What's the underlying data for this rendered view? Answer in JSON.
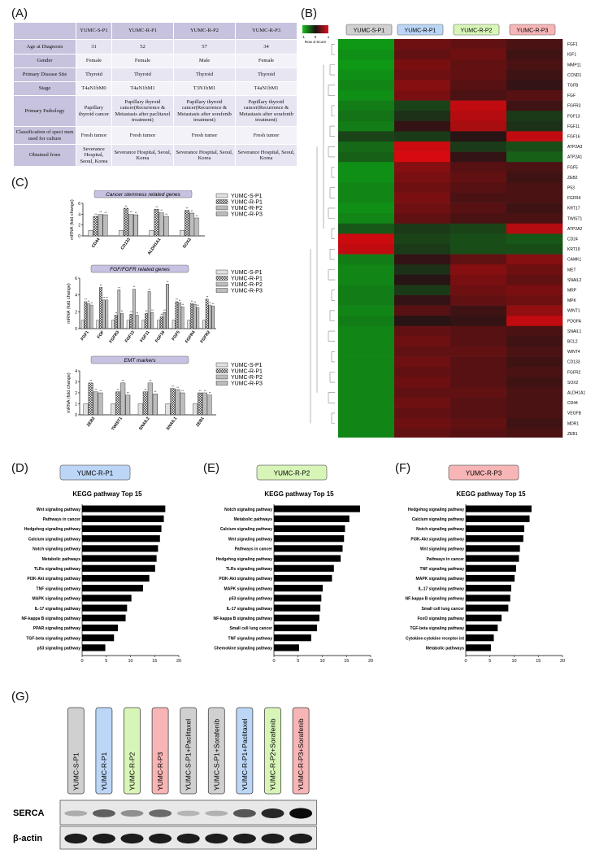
{
  "labels": {
    "A": "(A)",
    "B": "(B)",
    "C": "(C)",
    "D": "(D)",
    "E": "(E)",
    "F": "(F)",
    "G": "(G)"
  },
  "table": {
    "columns": [
      "YUMC-S-P1",
      "YUMC-R-P1",
      "YUMC-R-P2",
      "YUMC-R-P3"
    ],
    "rows": [
      {
        "label": "Age at Diagnosis",
        "values": [
          "31",
          "52",
          "57",
          "34"
        ]
      },
      {
        "label": "Gender",
        "values": [
          "Female",
          "Female",
          "Male",
          "Female"
        ]
      },
      {
        "label": "Primary Disease Site",
        "values": [
          "Thyroid",
          "Thyroid",
          "Thyroid",
          "Thyroid"
        ]
      },
      {
        "label": "Stage",
        "values": [
          "T4aN1bM0",
          "T4aN1bM1",
          "T3N1bM1",
          "T4aN1bM1"
        ]
      },
      {
        "label": "Primary Pathology",
        "values": [
          "Papillary thyroid cancer",
          "Papillary thyroid cancer(Recurrence & Metastasis after paclitaxel treatment)",
          "Papillary thyroid cancer(Recurrence & Metastasis after sorafenib treatment)",
          "Papillary thyroid cancer(Recurrence & Metastasis after sorafenib treatment)"
        ]
      },
      {
        "label": "Classification of speci men used for culture",
        "values": [
          "Fresh tumor",
          "Fresh tumor",
          "Fresh tumor",
          "Fresh tumor"
        ]
      },
      {
        "label": "Obtained from",
        "values": [
          "Severance Hospital, Seoul, Korea",
          "Severance Hospital, Seoul, Korea",
          "Severance Hospital, Seoul, Korea",
          "Severance Hospital, Seoul, Korea"
        ]
      }
    ]
  },
  "heatmap": {
    "legend_ticks": [
      "-1",
      "0",
      "1"
    ],
    "legend_label": "Row Z-Score",
    "columns": [
      "YUMC-S-P1",
      "YUMC-R-P1",
      "YUMC-R-P2",
      "YUMC-R-P3"
    ],
    "column_colors": [
      "#d0d0d0",
      "#bcd6f7",
      "#d8f5b8",
      "#f7b5b5"
    ],
    "genes": [
      "FGF1",
      "IGF1",
      "MMP11",
      "CCND1",
      "TGFB",
      "FGF",
      "FGFR3",
      "FGF13",
      "FGF11",
      "FGF16",
      "ATP2A3",
      "ATP2A1",
      "FGF5",
      "ZEB2",
      "P53",
      "FGFR4",
      "KRT17",
      "TWIST1",
      "ATP2A2",
      "CD24",
      "KRT19",
      "CAMK1",
      "MET",
      "SNAIL2",
      "MRP",
      "MPK",
      "WINT1",
      "PDGFA",
      "SNAIL1",
      "BCL2",
      "WINT4",
      "CD133",
      "FGFR2",
      "SOX2",
      "ALDH1A1",
      "CD44",
      "VEGFB",
      "MDR1",
      "ZEB1"
    ],
    "z_scores": [
      [
        -1.2,
        0.6,
        0.5,
        0.3
      ],
      [
        -1.1,
        0.5,
        0.6,
        0.2
      ],
      [
        -1.2,
        0.7,
        0.5,
        0.3
      ],
      [
        -1.1,
        0.6,
        0.5,
        0.2
      ],
      [
        -1.0,
        0.8,
        0.4,
        0.1
      ],
      [
        -1.1,
        0.7,
        0.3,
        0.4
      ],
      [
        -0.9,
        -0.3,
        1.3,
        0.2
      ],
      [
        -0.8,
        -0.1,
        1.2,
        -0.2
      ],
      [
        -0.9,
        0.1,
        1.1,
        -0.1
      ],
      [
        -0.3,
        -0.2,
        0.0,
        1.3
      ],
      [
        -0.7,
        1.4,
        -0.2,
        -0.4
      ],
      [
        -0.6,
        1.5,
        0.1,
        -0.6
      ],
      [
        -1.1,
        0.8,
        0.4,
        0.3
      ],
      [
        -1.1,
        0.7,
        0.5,
        0.2
      ],
      [
        -1.0,
        0.6,
        0.4,
        0.3
      ],
      [
        -1.0,
        0.7,
        0.3,
        0.3
      ],
      [
        -1.1,
        0.6,
        0.4,
        0.2
      ],
      [
        -1.0,
        0.5,
        0.3,
        0.3
      ],
      [
        -0.5,
        -0.2,
        -0.3,
        1.2
      ],
      [
        1.4,
        -0.3,
        -0.4,
        -0.5
      ],
      [
        1.3,
        -0.2,
        -0.4,
        -0.4
      ],
      [
        -0.9,
        0.1,
        0.5,
        0.8
      ],
      [
        -1.0,
        -0.1,
        0.8,
        0.6
      ],
      [
        -1.0,
        0.0,
        0.7,
        0.5
      ],
      [
        -0.9,
        -0.2,
        0.6,
        0.7
      ],
      [
        -0.9,
        0.1,
        0.5,
        0.6
      ],
      [
        -1.0,
        0.4,
        0.2,
        0.9
      ],
      [
        -0.9,
        0.0,
        0.1,
        1.3
      ],
      [
        -1.0,
        0.5,
        0.4,
        0.3
      ],
      [
        -1.0,
        0.6,
        0.4,
        0.2
      ],
      [
        -1.0,
        0.5,
        0.5,
        0.3
      ],
      [
        -1.0,
        0.6,
        0.4,
        0.2
      ],
      [
        -1.0,
        0.5,
        0.4,
        0.3
      ],
      [
        -1.0,
        0.6,
        0.4,
        0.2
      ],
      [
        -1.0,
        0.5,
        0.5,
        0.3
      ],
      [
        -1.0,
        0.6,
        0.4,
        0.3
      ],
      [
        -1.0,
        0.5,
        0.4,
        0.3
      ],
      [
        -1.0,
        0.6,
        0.5,
        0.2
      ],
      [
        -1.0,
        0.5,
        0.4,
        0.3
      ]
    ]
  },
  "panelC": {
    "legend": [
      "YUMC-S-P1",
      "YUMC-R-P1",
      "YUMC-R-P2",
      "YUMC-R-P3"
    ],
    "charts": [
      {
        "title": "Cancer stemness related genes",
        "ylabel": "mRNA (fold change)",
        "ylim": [
          0,
          6
        ],
        "yticks": [
          0,
          2,
          4,
          6
        ],
        "categories": [
          "CD44",
          "CD133",
          "ALDH1A1",
          "SOX2"
        ],
        "values": [
          [
            1.0,
            3.6,
            4.0,
            3.9
          ],
          [
            1.0,
            5.1,
            4.0,
            3.9
          ],
          [
            1.0,
            4.9,
            4.3,
            3.6
          ],
          [
            1.0,
            4.7,
            4.2,
            3.3
          ]
        ]
      },
      {
        "title": "FGF/FGFR related genes",
        "ylabel": "mRNA (fold change)",
        "ylim": [
          0,
          6
        ],
        "yticks": [
          0,
          2,
          4,
          6
        ],
        "categories": [
          "FGF1",
          "FGF",
          "FGFR3",
          "FGF13",
          "FGF11",
          "FGF16",
          "FGF5",
          "FGFR4",
          "FGFR2"
        ],
        "values": [
          [
            1.0,
            3.2,
            3.0,
            2.8
          ],
          [
            1.0,
            4.9,
            3.4,
            3.4
          ],
          [
            1.0,
            1.6,
            4.6,
            1.8
          ],
          [
            1.0,
            1.7,
            4.7,
            1.6
          ],
          [
            1.0,
            1.8,
            4.4,
            1.9
          ],
          [
            1.0,
            1.4,
            1.9,
            5.3
          ],
          [
            1.0,
            3.2,
            3.1,
            2.6
          ],
          [
            1.0,
            3.0,
            2.9,
            2.5
          ],
          [
            1.0,
            3.5,
            2.8,
            2.7
          ]
        ]
      },
      {
        "title": "EMT markers",
        "ylabel": "mRNA (fold change)",
        "ylim": [
          0,
          4
        ],
        "yticks": [
          0,
          1,
          2,
          3,
          4
        ],
        "categories": [
          "ZEB2",
          "TWIST1",
          "SNAIL2",
          "SNAIL1",
          "ZEB1"
        ],
        "values": [
          [
            1.0,
            2.9,
            2.1,
            2.0
          ],
          [
            1.0,
            2.1,
            2.9,
            1.8
          ],
          [
            1.0,
            2.1,
            2.9,
            1.9
          ],
          [
            1.0,
            2.4,
            2.3,
            2.0
          ],
          [
            1.0,
            2.0,
            2.0,
            1.8
          ]
        ]
      }
    ]
  },
  "kegg": [
    {
      "tag": "YUMC-R-P1",
      "tag_color": "#bcd6f7",
      "title": "KEGG pathway Top 15",
      "xlabel": "-log p-value",
      "xticks": [
        0,
        5,
        10,
        15,
        20
      ],
      "pathways": [
        "Wnt signaling pathway",
        "Pathways in cancer",
        "Hedgehog signaling pathway",
        "Calcium signaling pathway",
        "Notch signaling pathway",
        "Metabolic pathways",
        "TLRs signaling pathway",
        "PI3K-Akt signaling pathway",
        "TNF signaling pathway",
        "MAPK signaling pathway",
        "IL-17 signaling pathway",
        "NF-kappa B signaling pathway",
        "PPAR signaling pathway",
        "TGF-beta signaling pathway",
        "p53 signaling pathway"
      ],
      "values": [
        17.2,
        16.9,
        16.4,
        16.1,
        15.7,
        15.4,
        15.1,
        13.9,
        12.6,
        10.2,
        9.3,
        9.0,
        7.4,
        6.6,
        4.8
      ]
    },
    {
      "tag": "YUMC-R-P2",
      "tag_color": "#d8f5b8",
      "title": "KEGG pathway Top 15",
      "xlabel": "-log p-value",
      "xticks": [
        0,
        5,
        10,
        15,
        20
      ],
      "pathways": [
        "Notch signaling pathway",
        "Metabolic pathways",
        "Calcium signaling pathway",
        "Wnt signaling pathway",
        "Pathways in cancer",
        "Hedgehog signaling pathway",
        "TLRs signaling pathway",
        "PI3K-Akt signaling pathway",
        "MAPK signaling pathway",
        "p53 signaling pathway",
        "IL-17 signaling pathway",
        "NF-kappa B signaling pathway",
        "Small cell lung cancer",
        "TNF signaling pathway",
        "Chemokine signaling pathway"
      ],
      "values": [
        17.8,
        15.6,
        14.7,
        14.5,
        14.2,
        13.8,
        12.4,
        12.0,
        10.1,
        9.8,
        9.6,
        9.4,
        8.9,
        7.7,
        5.2
      ]
    },
    {
      "tag": "YUMC-R-P3",
      "tag_color": "#f7b5b5",
      "title": "KEGG pathway Top 15",
      "xlabel": "-log p-value",
      "xticks": [
        0,
        5,
        10,
        15,
        20
      ],
      "pathways": [
        "Hedgehog signaling pathway",
        "Calcium signaling pathway",
        "Notch signaling pathway",
        "PI3K-Akt signaling pathway",
        "Wnt signaling pathway",
        "Pathways in cancer",
        "TNF signaling pathway",
        "MAPK signaling pathway",
        "IL-17 signaling pathway",
        "NF-kappa B signaling pathway",
        "Small cell lung cancer",
        "FoxO signaling pathway",
        "TGF-beta signaling pathway",
        "Cytokine-cytokine receptor int",
        "Metabolic pathways"
      ],
      "values": [
        13.6,
        13.2,
        12.1,
        11.9,
        11.2,
        11.0,
        10.4,
        10.1,
        9.4,
        9.2,
        8.8,
        7.4,
        6.6,
        5.8,
        5.2
      ]
    }
  ],
  "western": {
    "lanes": [
      {
        "label": "YUMC-S-P1",
        "color": "#d0d0d0"
      },
      {
        "label": "YUMC-R-P1",
        "color": "#bcd6f7"
      },
      {
        "label": "YUMC-R-P2",
        "color": "#d8f5b8"
      },
      {
        "label": "YUMC-R-P3",
        "color": "#f7b5b5"
      },
      {
        "label": "YUMC-S-P1+Paclitaxel",
        "color": "#d0d0d0"
      },
      {
        "label": "YUMC-S-P1+Sorafenib",
        "color": "#d0d0d0"
      },
      {
        "label": "YUMC-R-P1+Paclitaxel",
        "color": "#bcd6f7"
      },
      {
        "label": "YUMC-R-P2+Sorafenib",
        "color": "#d8f5b8"
      },
      {
        "label": "YUMC-R-P3+Sorafenib",
        "color": "#f7b5b5"
      }
    ],
    "bands": [
      {
        "label": "SERCA",
        "intensity": [
          0.15,
          0.55,
          0.3,
          0.5,
          0.1,
          0.12,
          0.6,
          0.85,
          1.0
        ]
      },
      {
        "label": "β-actin",
        "intensity": [
          0.9,
          0.9,
          0.9,
          0.9,
          0.9,
          0.9,
          0.9,
          0.9,
          0.9
        ]
      }
    ]
  }
}
